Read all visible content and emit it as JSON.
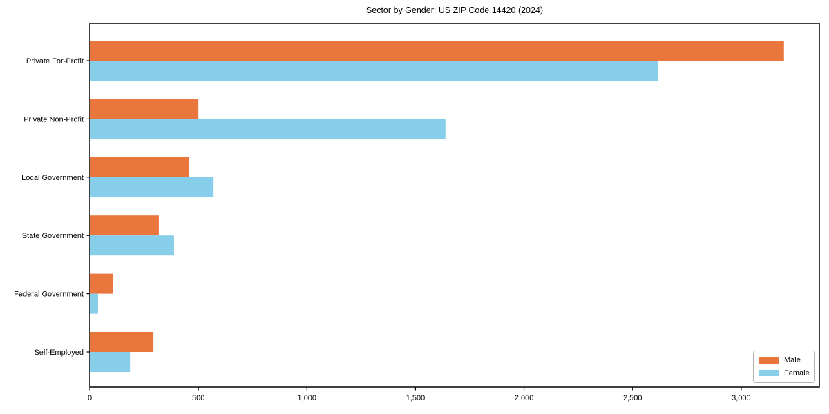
{
  "chart_data": {
    "type": "bar",
    "orientation": "horizontal",
    "title": "Sector by Gender: US ZIP Code 14420 (2024)",
    "categories": [
      "Private For-Profit",
      "Private Non-Profit",
      "Local Government",
      "State Government",
      "Federal Government",
      "Self-Employed"
    ],
    "series": [
      {
        "name": "Male",
        "color": "#e8763d",
        "values": [
          3197,
          500,
          455,
          318,
          105,
          293
        ]
      },
      {
        "name": "Female",
        "color": "#87ceeb",
        "values": [
          2618,
          1638,
          570,
          388,
          38,
          185
        ]
      }
    ],
    "xlabel": "",
    "ylabel": "",
    "xlim": [
      0,
      3360
    ],
    "xticks": [
      0,
      500,
      1000,
      1500,
      2000,
      2500,
      3000
    ],
    "xtick_labels": [
      "0",
      "500",
      "1,000",
      "1,500",
      "2,000",
      "2,500",
      "3,000"
    ],
    "grid": false,
    "frame": true,
    "legend": {
      "position": "lower right",
      "entries": [
        "Male",
        "Female"
      ]
    },
    "colors": {
      "male": "#e8763d",
      "female": "#87ceeb",
      "frame": "#000000",
      "background": "#ffffff",
      "legend_border": "#b3b3b3"
    }
  }
}
